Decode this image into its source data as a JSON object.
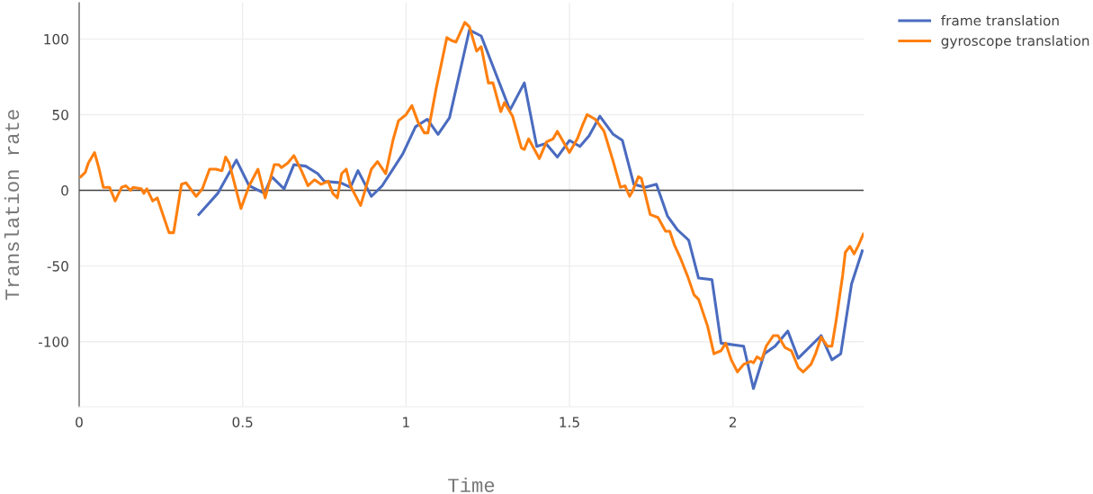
{
  "chart_data": {
    "type": "line",
    "xlabel": "Time",
    "ylabel": "Translation rate",
    "xlim": [
      0,
      2.4
    ],
    "ylim": [
      -143,
      124
    ],
    "xticks": [
      0,
      {
        "value": 0.5,
        "label": "0.5"
      },
      1,
      {
        "value": 1.5,
        "label": "1.5"
      },
      2
    ],
    "yticks": [
      -100,
      -50,
      0,
      50,
      100
    ],
    "grid": true,
    "legend": "top right",
    "marker": "none",
    "line_style": "solid",
    "ref_lines": [
      {
        "axis": "y",
        "value": 0,
        "label": null,
        "color": "#444444"
      }
    ],
    "series": [
      {
        "name": "frame translation",
        "color": "#4a6bbf",
        "x": [
          0.366,
          0.424,
          0.481,
          0.52,
          0.567,
          0.589,
          0.627,
          0.657,
          0.693,
          0.73,
          0.75,
          0.8,
          0.83,
          0.853,
          0.894,
          0.927,
          0.99,
          1.029,
          1.065,
          1.098,
          1.133,
          1.194,
          1.23,
          1.318,
          1.362,
          1.4,
          1.428,
          1.463,
          1.5,
          1.532,
          1.56,
          1.593,
          1.634,
          1.662,
          1.697,
          1.731,
          1.766,
          1.8,
          1.83,
          1.865,
          1.895,
          1.936,
          1.964,
          2.033,
          2.063,
          2.096,
          2.129,
          2.168,
          2.2,
          2.27,
          2.303,
          2.33,
          2.363,
          2.396
        ],
        "values": [
          -16,
          -2,
          20,
          3,
          -2,
          9,
          1,
          17,
          16,
          11,
          6,
          5,
          2,
          13,
          -4,
          3,
          24,
          42,
          47,
          37,
          48,
          106,
          102,
          53,
          71,
          29,
          31,
          22,
          33,
          29,
          36,
          49,
          37,
          33,
          4,
          2,
          4,
          -17,
          -26,
          -33,
          -58,
          -59,
          -101,
          -103,
          -131,
          -108,
          -103,
          -93,
          -111,
          -96,
          -112,
          -108,
          -62,
          -40
        ]
      },
      {
        "name": "gyroscope translation",
        "color": "#ff7f0e",
        "x": [
          0.005,
          0.019,
          0.028,
          0.047,
          0.06,
          0.074,
          0.093,
          0.11,
          0.13,
          0.143,
          0.157,
          0.165,
          0.19,
          0.198,
          0.207,
          0.225,
          0.239,
          0.275,
          0.289,
          0.313,
          0.327,
          0.344,
          0.358,
          0.377,
          0.399,
          0.418,
          0.437,
          0.448,
          0.459,
          0.495,
          0.52,
          0.547,
          0.569,
          0.597,
          0.61,
          0.619,
          0.638,
          0.657,
          0.68,
          0.7,
          0.72,
          0.74,
          0.762,
          0.776,
          0.79,
          0.803,
          0.817,
          0.83,
          0.861,
          0.894,
          0.913,
          0.938,
          0.96,
          0.977,
          1.0,
          1.018,
          1.037,
          1.056,
          1.067,
          1.092,
          1.125,
          1.139,
          1.153,
          1.18,
          1.194,
          1.216,
          1.23,
          1.252,
          1.266,
          1.29,
          1.301,
          1.326,
          1.353,
          1.362,
          1.375,
          1.408,
          1.43,
          1.45,
          1.463,
          1.5,
          1.524,
          1.54,
          1.554,
          1.579,
          1.606,
          1.634,
          1.656,
          1.67,
          1.684,
          1.692,
          1.711,
          1.72,
          1.747,
          1.771,
          1.794,
          1.807,
          1.821,
          1.84,
          1.862,
          1.881,
          1.895,
          1.923,
          1.942,
          1.964,
          1.978,
          1.995,
          2.014,
          2.033,
          2.055,
          2.063,
          2.074,
          2.088,
          2.102,
          2.124,
          2.138,
          2.16,
          2.179,
          2.2,
          2.215,
          2.239,
          2.253,
          2.27,
          2.289,
          2.303,
          2.316,
          2.336,
          2.344,
          2.358,
          2.371,
          2.385,
          2.399
        ],
        "values": [
          9,
          12,
          18,
          25,
          15,
          2,
          2,
          -7,
          2,
          3,
          0,
          2,
          1,
          -2,
          1,
          -7,
          -5,
          -28,
          -28,
          4,
          5,
          0,
          -4,
          1,
          14,
          14,
          13,
          22,
          18,
          -12,
          3,
          14,
          -5,
          17,
          17,
          15,
          18,
          23,
          13,
          3,
          7,
          4,
          6,
          -2,
          -5,
          11,
          14,
          3,
          -10,
          14,
          19,
          11,
          33,
          46,
          50,
          56,
          45,
          38,
          38,
          67,
          101,
          99,
          98,
          111,
          108,
          92,
          95,
          71,
          71,
          52,
          58,
          49,
          28,
          27,
          34,
          21,
          32,
          34,
          39,
          25,
          34,
          43,
          50,
          47,
          39,
          19,
          2,
          3,
          -4,
          -1,
          9,
          8,
          -16,
          -18,
          -27,
          -27,
          -36,
          -45,
          -57,
          -69,
          -72,
          -90,
          -108,
          -106,
          -101,
          -112,
          -120,
          -115,
          -113,
          -114,
          -110,
          -112,
          -103,
          -96,
          -96,
          -104,
          -106,
          -117,
          -120,
          -115,
          -108,
          -97,
          -103,
          -103,
          -86,
          -56,
          -41,
          -37,
          -42,
          -36,
          -29
        ]
      }
    ]
  }
}
